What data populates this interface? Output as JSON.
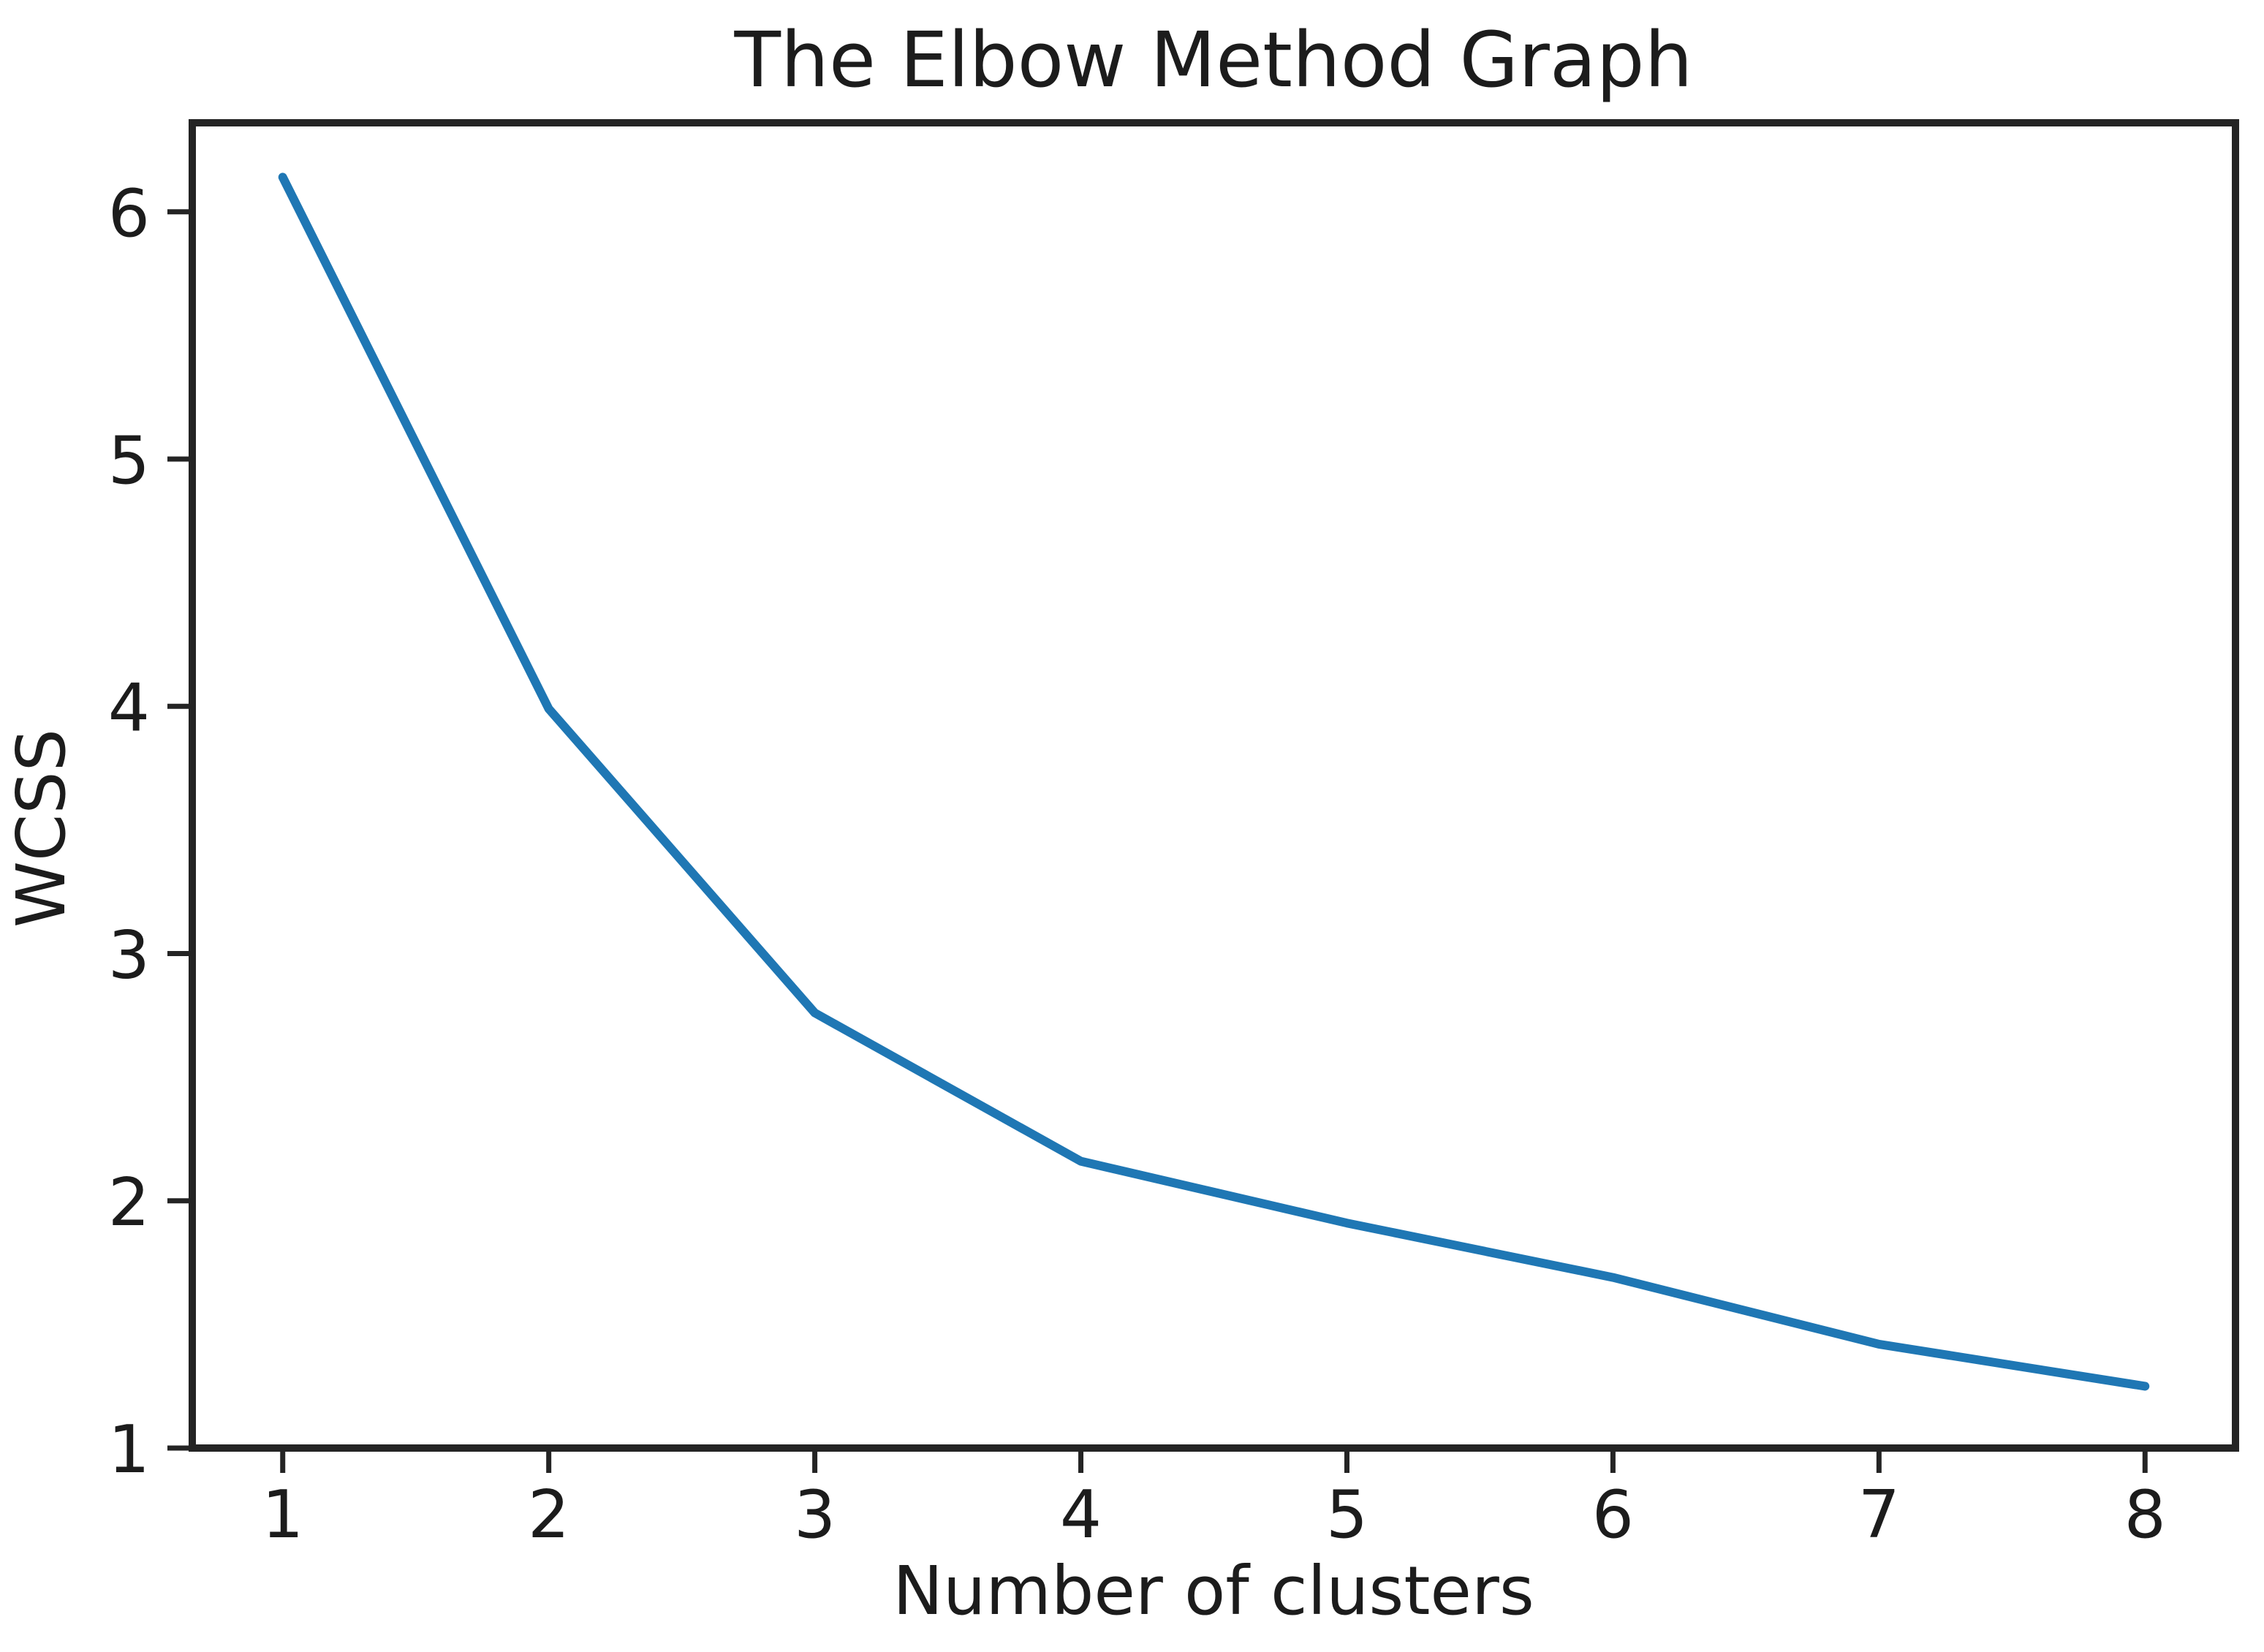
{
  "chart_data": {
    "type": "line",
    "title": "The Elbow Method Graph",
    "xlabel": "Number of clusters",
    "ylabel": "WCSS",
    "x": [
      1,
      2,
      3,
      4,
      5,
      6,
      7,
      8
    ],
    "series": [
      {
        "name": "WCSS",
        "values": [
          6.14,
          3.99,
          2.76,
          2.16,
          1.91,
          1.69,
          1.42,
          1.25
        ]
      }
    ],
    "xticks": [
      "1",
      "2",
      "3",
      "4",
      "5",
      "6",
      "7",
      "8"
    ],
    "xtick_values": [
      1,
      2,
      3,
      4,
      5,
      6,
      7,
      8
    ],
    "yticks": [
      "1",
      "2",
      "3",
      "4",
      "5",
      "6"
    ],
    "ytick_values": [
      1,
      2,
      3,
      4,
      5,
      6
    ],
    "xlim": [
      0.66,
      8.34
    ],
    "ylim": [
      1.0,
      6.36
    ],
    "grid": false,
    "legend": "none",
    "line_color": "#1f77b4",
    "axis_color": "#242424",
    "text_color": "#1c1c1c",
    "background_color": "#ffffff"
  }
}
